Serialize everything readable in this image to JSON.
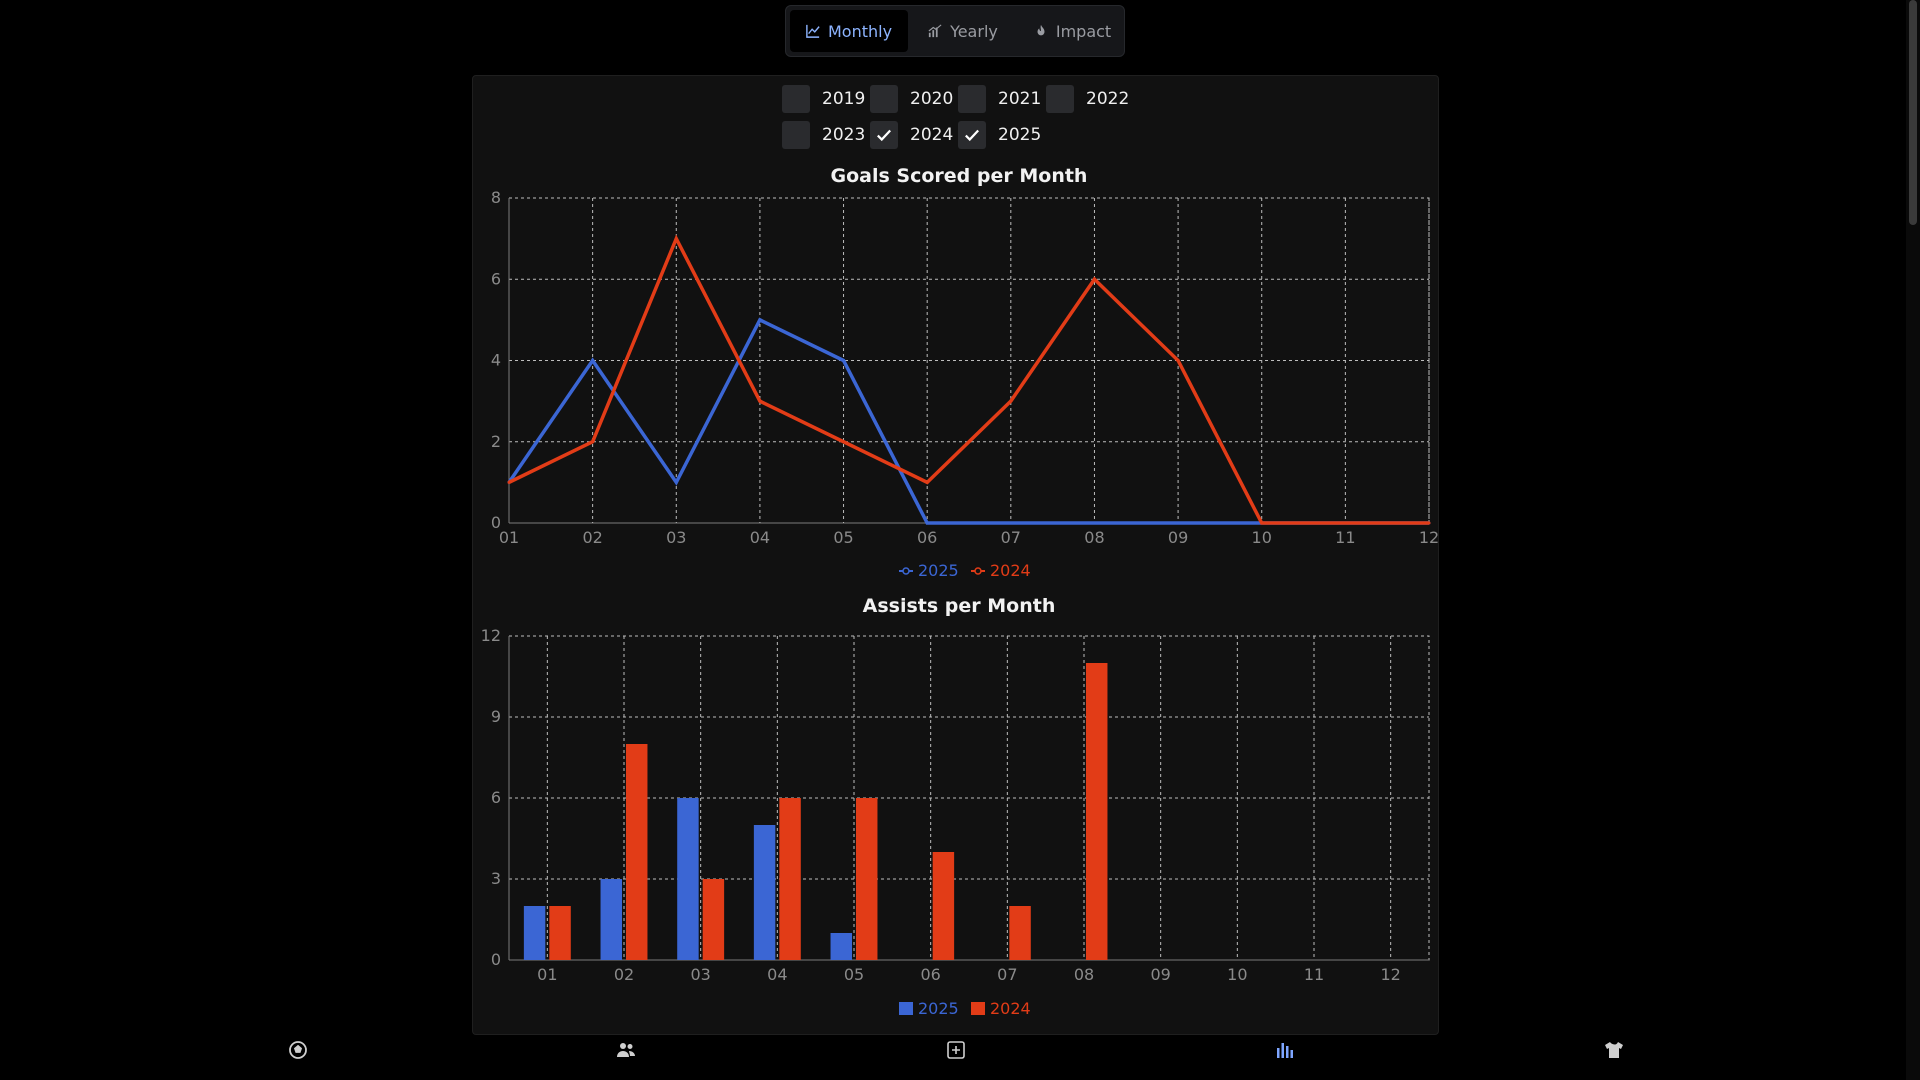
{
  "tabs": [
    {
      "label": "Monthly",
      "icon": "line-chart-icon",
      "active": true
    },
    {
      "label": "Yearly",
      "icon": "bar-chart-icon",
      "active": false
    },
    {
      "label": "Impact",
      "icon": "fire-icon",
      "active": false
    }
  ],
  "years": [
    {
      "label": "2019",
      "checked": false
    },
    {
      "label": "2020",
      "checked": false
    },
    {
      "label": "2021",
      "checked": false
    },
    {
      "label": "2022",
      "checked": false
    },
    {
      "label": "2023",
      "checked": false
    },
    {
      "label": "2024",
      "checked": true
    },
    {
      "label": "2025",
      "checked": true
    }
  ],
  "colors": {
    "blue": "#3b66d4",
    "red": "#e23c17",
    "accent": "#8db4ff"
  },
  "chart_data": [
    {
      "type": "line",
      "title": "Goals Scored per Month",
      "categories": [
        "01",
        "02",
        "03",
        "04",
        "05",
        "06",
        "07",
        "08",
        "09",
        "10",
        "11",
        "12"
      ],
      "ylim": [
        0,
        8
      ],
      "yticks": [
        0,
        2,
        4,
        6,
        8
      ],
      "grid": true,
      "legend": "bottom-center",
      "series": [
        {
          "name": "2025",
          "color": "#3b66d4",
          "values": [
            1,
            4,
            1,
            5,
            4,
            0,
            0,
            0,
            0,
            0,
            0,
            0
          ]
        },
        {
          "name": "2024",
          "color": "#e23c17",
          "values": [
            1,
            2,
            7,
            3,
            2,
            1,
            3,
            6,
            4,
            0,
            0,
            0
          ]
        }
      ]
    },
    {
      "type": "bar",
      "title": "Assists per Month",
      "categories": [
        "01",
        "02",
        "03",
        "04",
        "05",
        "06",
        "07",
        "08",
        "09",
        "10",
        "11",
        "12"
      ],
      "ylim": [
        0,
        12
      ],
      "yticks": [
        0,
        3,
        6,
        9,
        12
      ],
      "grid": true,
      "legend": "bottom-center",
      "series": [
        {
          "name": "2025",
          "color": "#3b66d4",
          "values": [
            2,
            3,
            6,
            5,
            1,
            0,
            0,
            0,
            0,
            0,
            0,
            0
          ]
        },
        {
          "name": "2024",
          "color": "#e23c17",
          "values": [
            2,
            8,
            3,
            6,
            6,
            4,
            2,
            11,
            0,
            0,
            0,
            0
          ]
        }
      ]
    }
  ],
  "nav": [
    {
      "name": "home-nav",
      "icon": "soccer-ball-icon"
    },
    {
      "name": "team-nav",
      "icon": "people-icon"
    },
    {
      "name": "add-nav",
      "icon": "plus-square-icon"
    },
    {
      "name": "stats-nav",
      "icon": "bar-chart-icon"
    },
    {
      "name": "kit-nav",
      "icon": "jersey-icon"
    }
  ]
}
